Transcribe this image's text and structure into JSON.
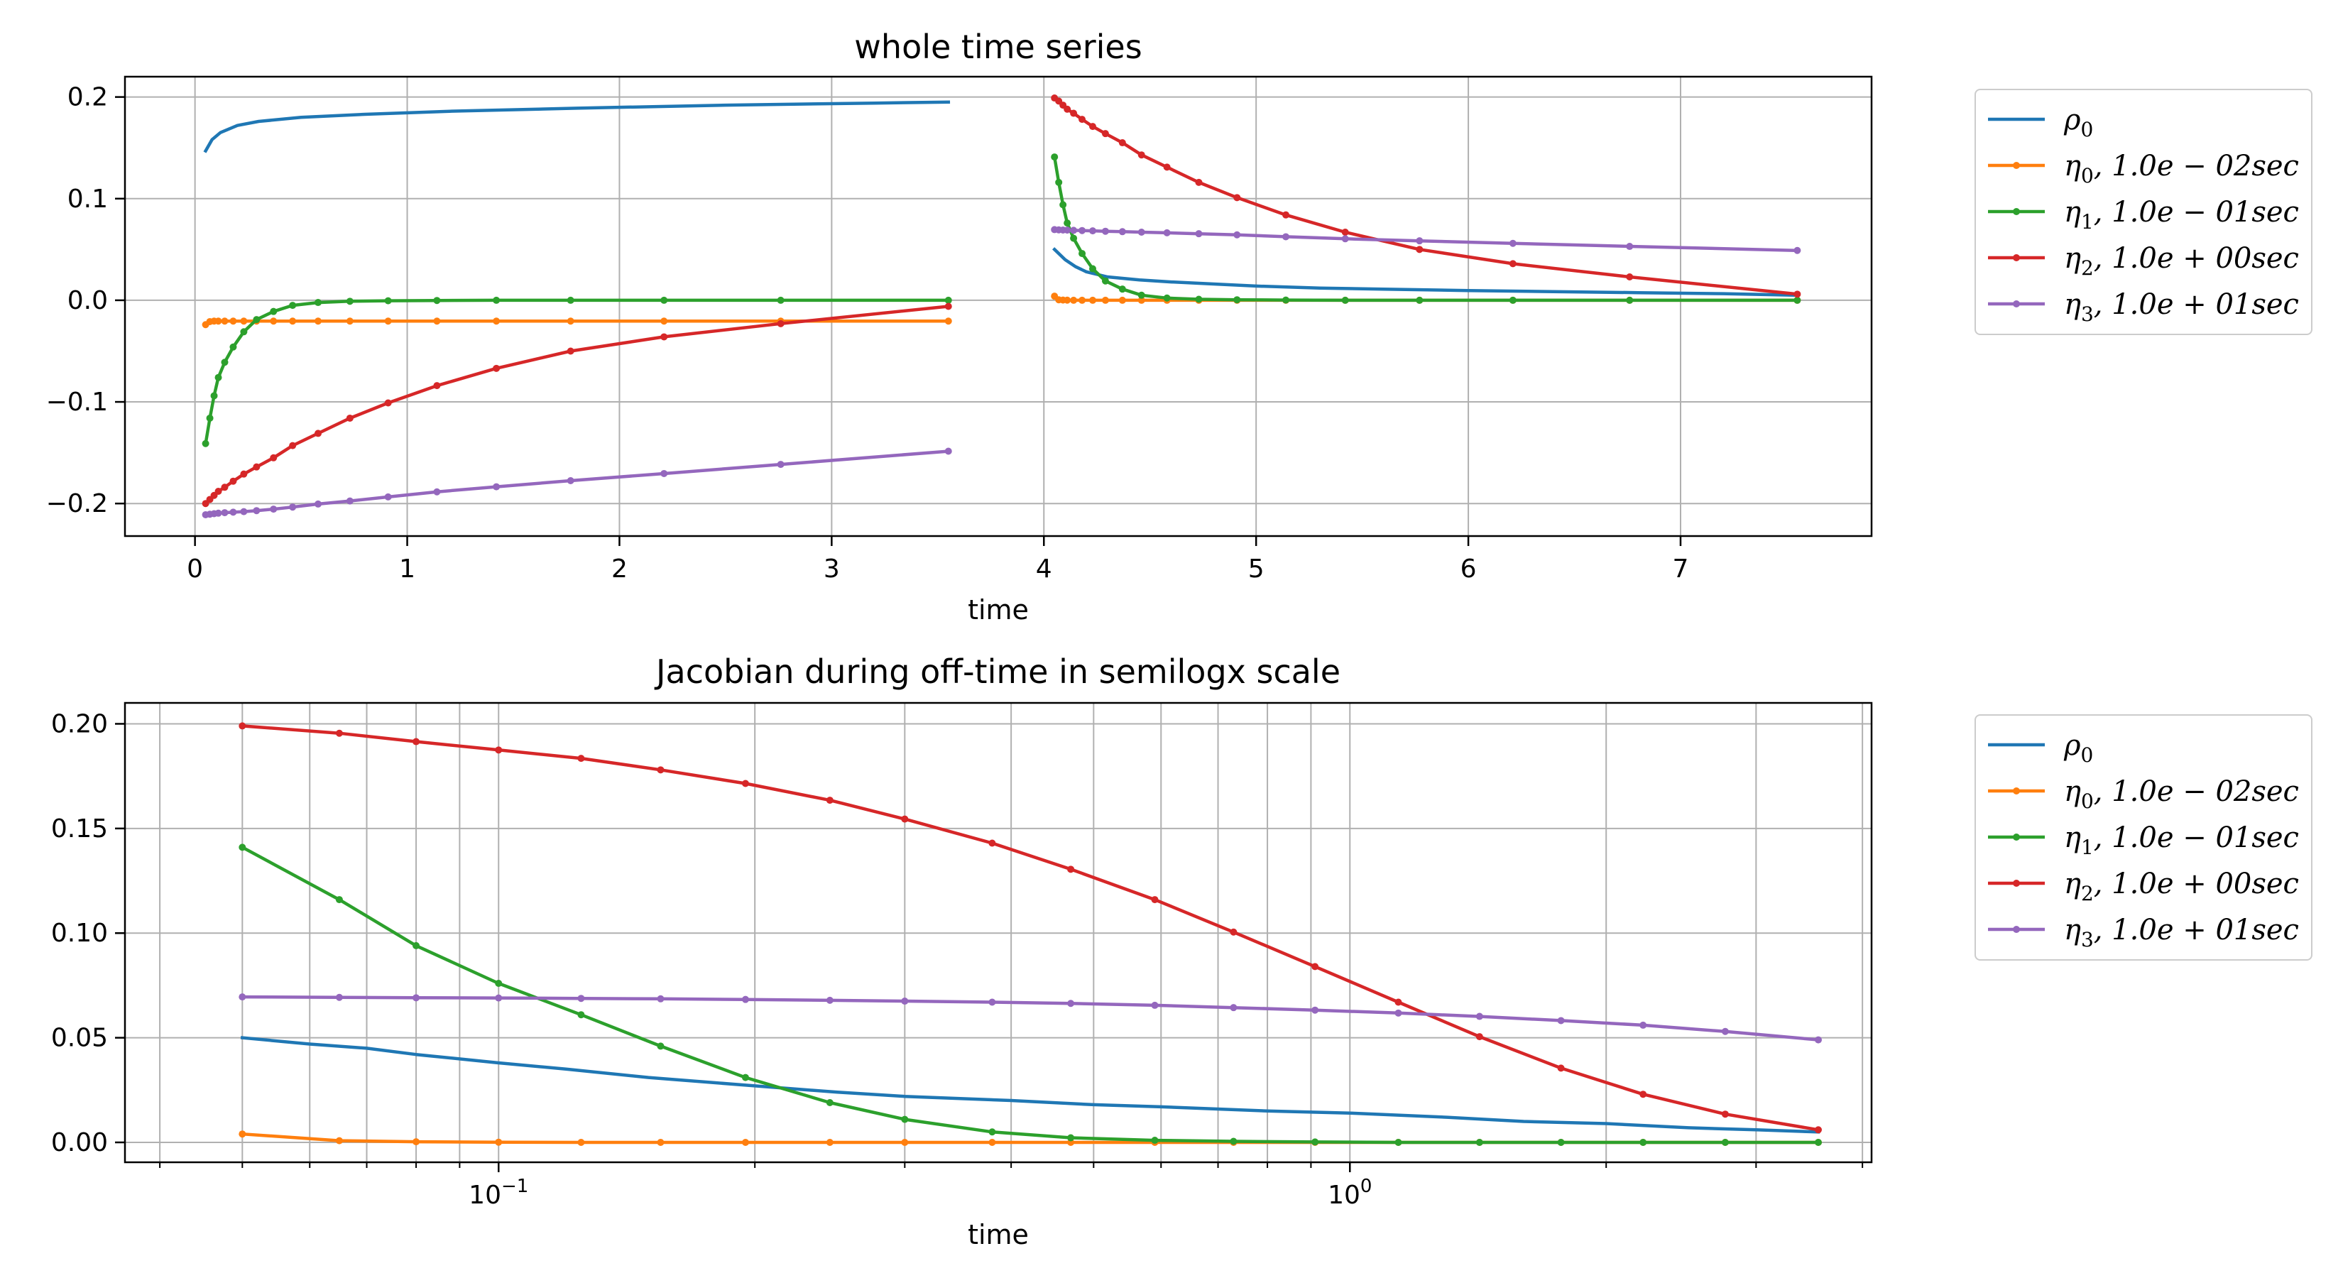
{
  "chart_data": [
    {
      "type": "line",
      "title": "whole time series",
      "xlabel": "time",
      "ylabel": "",
      "xscale": "linear",
      "xlim": [
        -0.33,
        7.9
      ],
      "ylim": [
        -0.232,
        0.22
      ],
      "xticks": [
        0,
        1,
        2,
        3,
        4,
        5,
        6,
        7
      ],
      "xtick_labels": [
        "0",
        "1",
        "2",
        "3",
        "4",
        "5",
        "6",
        "7"
      ],
      "yticks": [
        -0.2,
        -0.1,
        0.0,
        0.1,
        0.2
      ],
      "ytick_labels": [
        "−0.2",
        "−0.1",
        "0.0",
        "0.1",
        "0.2"
      ],
      "grid": true,
      "legend_position": "outside-right",
      "series": [
        {
          "name": "ρ₀",
          "name_base": "ρ",
          "name_sub": "0",
          "name_rest": "",
          "color": "#1f77b4",
          "markers": false,
          "segments": [
            {
              "x": [
                0.05,
                0.08,
                0.12,
                0.2,
                0.3,
                0.5,
                0.8,
                1.2,
                1.8,
                2.5,
                3.2,
                3.55
              ],
              "y": [
                0.147,
                0.158,
                0.165,
                0.172,
                0.176,
                0.18,
                0.183,
                0.186,
                0.189,
                0.192,
                0.194,
                0.195
              ]
            },
            {
              "x": [
                4.05,
                4.1,
                4.15,
                4.2,
                4.3,
                4.45,
                4.6,
                4.8,
                5.0,
                5.3,
                5.6,
                6.0,
                6.4,
                6.8,
                7.2,
                7.55
              ],
              "y": [
                0.05,
                0.04,
                0.033,
                0.028,
                0.023,
                0.02,
                0.018,
                0.016,
                0.014,
                0.012,
                0.011,
                0.0095,
                0.0085,
                0.0075,
                0.0065,
                0.005
              ]
            }
          ]
        },
        {
          "name": "η₀, 1.0e−02sec",
          "name_base": "η",
          "name_sub": "0",
          "name_rest": ", 1.0e − 02sec",
          "color": "#ff7f0e",
          "markers": true,
          "segments": [
            {
              "x": [
                0.05,
                0.07,
                0.09,
                0.11,
                0.14,
                0.18,
                0.23,
                0.29,
                0.37,
                0.46,
                0.58,
                0.73,
                0.91,
                1.14,
                1.42,
                1.77,
                2.21,
                2.76,
                3.55
              ],
              "y": [
                -0.024,
                -0.021,
                -0.0205,
                -0.0205,
                -0.0205,
                -0.0205,
                -0.0205,
                -0.0205,
                -0.0205,
                -0.0205,
                -0.0205,
                -0.0205,
                -0.0205,
                -0.0205,
                -0.0205,
                -0.0205,
                -0.0205,
                -0.0205,
                -0.0205
              ]
            },
            {
              "x": [
                4.05,
                4.07,
                4.09,
                4.11,
                4.14,
                4.18,
                4.23,
                4.29,
                4.37,
                4.46,
                4.58,
                4.73,
                4.91,
                5.14,
                5.42,
                5.77,
                6.21,
                6.76,
                7.55
              ],
              "y": [
                0.004,
                0.0005,
                0.0002,
                0.0001,
                0.0,
                0.0,
                0.0,
                0.0,
                0.0,
                0.0,
                0.0,
                0.0,
                0.0,
                0.0,
                0.0,
                0.0,
                0.0,
                0.0,
                0.0
              ]
            }
          ]
        },
        {
          "name": "η₁, 1.0e−01sec",
          "name_base": "η",
          "name_sub": "1",
          "name_rest": ", 1.0e − 01sec",
          "color": "#2ca02c",
          "markers": true,
          "segments": [
            {
              "x": [
                0.05,
                0.07,
                0.09,
                0.11,
                0.14,
                0.18,
                0.23,
                0.29,
                0.37,
                0.46,
                0.58,
                0.73,
                0.91,
                1.14,
                1.42,
                1.77,
                2.21,
                2.76,
                3.55
              ],
              "y": [
                -0.141,
                -0.116,
                -0.094,
                -0.076,
                -0.061,
                -0.046,
                -0.031,
                -0.019,
                -0.011,
                -0.005,
                -0.0022,
                -0.001,
                -0.0005,
                -0.0002,
                0.0,
                0.0,
                0.0,
                0.0,
                0.0
              ]
            },
            {
              "x": [
                4.05,
                4.07,
                4.09,
                4.11,
                4.14,
                4.18,
                4.23,
                4.29,
                4.37,
                4.46,
                4.58,
                4.73,
                4.91,
                5.14,
                5.42,
                5.77,
                6.21,
                6.76,
                7.55
              ],
              "y": [
                0.141,
                0.116,
                0.094,
                0.076,
                0.061,
                0.046,
                0.031,
                0.019,
                0.011,
                0.005,
                0.0022,
                0.001,
                0.0005,
                0.0002,
                0.0,
                0.0,
                0.0,
                0.0,
                0.0
              ]
            }
          ]
        },
        {
          "name": "η₂, 1.0e+00sec",
          "name_base": "η",
          "name_sub": "2",
          "name_rest": ", 1.0e + 00sec",
          "color": "#d62728",
          "markers": true,
          "segments": [
            {
              "x": [
                0.05,
                0.07,
                0.09,
                0.11,
                0.14,
                0.18,
                0.23,
                0.29,
                0.37,
                0.46,
                0.58,
                0.73,
                0.91,
                1.14,
                1.42,
                1.77,
                2.21,
                2.76,
                3.55
              ],
              "y": [
                -0.2,
                -0.196,
                -0.192,
                -0.188,
                -0.184,
                -0.178,
                -0.171,
                -0.164,
                -0.155,
                -0.143,
                -0.131,
                -0.116,
                -0.101,
                -0.084,
                -0.067,
                -0.05,
                -0.036,
                -0.023,
                -0.006
              ]
            },
            {
              "x": [
                4.05,
                4.07,
                4.09,
                4.11,
                4.14,
                4.18,
                4.23,
                4.29,
                4.37,
                4.46,
                4.58,
                4.73,
                4.91,
                5.14,
                5.42,
                5.77,
                6.21,
                6.76,
                7.55
              ],
              "y": [
                0.199,
                0.196,
                0.192,
                0.188,
                0.184,
                0.178,
                0.171,
                0.164,
                0.155,
                0.143,
                0.131,
                0.116,
                0.101,
                0.084,
                0.067,
                0.05,
                0.036,
                0.023,
                0.006
              ]
            }
          ]
        },
        {
          "name": "η₃, 1.0e+01sec",
          "name_base": "η",
          "name_sub": "3",
          "name_rest": ", 1.0e + 01sec",
          "color": "#9467bd",
          "markers": true,
          "segments": [
            {
              "x": [
                0.05,
                0.07,
                0.09,
                0.11,
                0.14,
                0.18,
                0.23,
                0.29,
                0.37,
                0.46,
                0.58,
                0.73,
                0.91,
                1.14,
                1.42,
                1.77,
                2.21,
                2.76,
                3.55
              ],
              "y": [
                -0.211,
                -0.2105,
                -0.21,
                -0.2095,
                -0.209,
                -0.2085,
                -0.208,
                -0.207,
                -0.2055,
                -0.2035,
                -0.2005,
                -0.1975,
                -0.1935,
                -0.1885,
                -0.1835,
                -0.1775,
                -0.1705,
                -0.1615,
                -0.1485
              ]
            },
            {
              "x": [
                4.05,
                4.07,
                4.09,
                4.11,
                4.14,
                4.18,
                4.23,
                4.29,
                4.37,
                4.46,
                4.58,
                4.73,
                4.91,
                5.14,
                5.42,
                5.77,
                6.21,
                6.76,
                7.55
              ],
              "y": [
                0.0695,
                0.0693,
                0.0691,
                0.069,
                0.0688,
                0.0686,
                0.0683,
                0.0679,
                0.0675,
                0.067,
                0.0664,
                0.0655,
                0.0644,
                0.0625,
                0.0605,
                0.0585,
                0.056,
                0.053,
                0.049
              ]
            }
          ]
        }
      ]
    },
    {
      "type": "line",
      "title": "Jacobian during off-time in semilogx scale",
      "xlabel": "time",
      "ylabel": "",
      "xscale": "log",
      "xlim": [
        0.0364,
        4.1
      ],
      "ylim": [
        -0.0095,
        0.21
      ],
      "xticks": [
        0.1,
        1.0
      ],
      "xtick_labels": [
        {
          "base": "10",
          "exp": "−1"
        },
        {
          "base": "10",
          "exp": "0"
        }
      ],
      "yticks": [
        0.0,
        0.05,
        0.1,
        0.15,
        0.2
      ],
      "ytick_labels": [
        "0.00",
        "0.05",
        "0.10",
        "0.15",
        "0.20"
      ],
      "grid": true,
      "legend_position": "outside-right",
      "series": [
        {
          "name": "ρ₀",
          "name_base": "ρ",
          "name_sub": "0",
          "name_rest": "",
          "color": "#1f77b4",
          "markers": false,
          "segments": [
            {
              "x": [
                0.05,
                0.06,
                0.07,
                0.08,
                0.1,
                0.12,
                0.15,
                0.2,
                0.25,
                0.3,
                0.4,
                0.5,
                0.6,
                0.8,
                1.0,
                1.3,
                1.6,
                2.0,
                2.5,
                3.0,
                3.55
              ],
              "y": [
                0.05,
                0.047,
                0.045,
                0.042,
                0.038,
                0.035,
                0.031,
                0.027,
                0.024,
                0.022,
                0.02,
                0.018,
                0.017,
                0.015,
                0.014,
                0.012,
                0.01,
                0.009,
                0.007,
                0.006,
                0.005
              ]
            }
          ]
        },
        {
          "name": "η₀, 1.0e−02sec",
          "name_base": "η",
          "name_sub": "0",
          "name_rest": ", 1.0e − 02sec",
          "color": "#ff7f0e",
          "markers": true,
          "segments": [
            {
              "x": [
                0.05,
                0.065,
                0.08,
                0.1,
                0.125,
                0.155,
                0.195,
                0.245,
                0.3,
                0.38,
                0.47,
                0.59,
                0.73,
                0.91,
                1.14,
                1.42,
                1.77,
                2.21,
                2.76,
                3.55
              ],
              "y": [
                0.004,
                0.0008,
                0.0003,
                0.0001,
                0.0,
                0.0,
                0.0,
                0.0,
                0.0,
                0.0,
                0.0,
                0.0,
                0.0,
                0.0,
                0.0,
                0.0,
                0.0,
                0.0,
                0.0,
                0.0
              ]
            }
          ]
        },
        {
          "name": "η₁, 1.0e−01sec",
          "name_base": "η",
          "name_sub": "1",
          "name_rest": ", 1.0e − 01sec",
          "color": "#2ca02c",
          "markers": true,
          "segments": [
            {
              "x": [
                0.05,
                0.065,
                0.08,
                0.1,
                0.125,
                0.155,
                0.195,
                0.245,
                0.3,
                0.38,
                0.47,
                0.59,
                0.73,
                0.91,
                1.14,
                1.42,
                1.77,
                2.21,
                2.76,
                3.55
              ],
              "y": [
                0.141,
                0.116,
                0.094,
                0.076,
                0.061,
                0.046,
                0.031,
                0.019,
                0.011,
                0.005,
                0.0022,
                0.001,
                0.0005,
                0.0002,
                0.0,
                0.0,
                0.0,
                0.0,
                0.0,
                0.0
              ]
            }
          ]
        },
        {
          "name": "η₂, 1.0e+00sec",
          "name_base": "η",
          "name_sub": "2",
          "name_rest": ", 1.0e + 00sec",
          "color": "#d62728",
          "markers": true,
          "segments": [
            {
              "x": [
                0.05,
                0.065,
                0.08,
                0.1,
                0.125,
                0.155,
                0.195,
                0.245,
                0.3,
                0.38,
                0.47,
                0.59,
                0.73,
                0.91,
                1.14,
                1.42,
                1.77,
                2.21,
                2.76,
                3.55
              ],
              "y": [
                0.199,
                0.1955,
                0.1915,
                0.1875,
                0.1835,
                0.178,
                0.1715,
                0.1635,
                0.1545,
                0.143,
                0.1305,
                0.116,
                0.1005,
                0.084,
                0.067,
                0.0505,
                0.0355,
                0.023,
                0.0135,
                0.006
              ]
            }
          ]
        },
        {
          "name": "η₃, 1.0e+01sec",
          "name_base": "η",
          "name_sub": "3",
          "name_rest": ", 1.0e + 01sec",
          "color": "#9467bd",
          "markers": true,
          "segments": [
            {
              "x": [
                0.05,
                0.065,
                0.08,
                0.1,
                0.125,
                0.155,
                0.195,
                0.245,
                0.3,
                0.38,
                0.47,
                0.59,
                0.73,
                0.91,
                1.14,
                1.42,
                1.77,
                2.21,
                2.76,
                3.55
              ],
              "y": [
                0.0695,
                0.0693,
                0.0691,
                0.069,
                0.0688,
                0.0686,
                0.0683,
                0.0679,
                0.0675,
                0.067,
                0.0664,
                0.0655,
                0.0644,
                0.0632,
                0.0618,
                0.0602,
                0.0582,
                0.056,
                0.053,
                0.049
              ]
            }
          ]
        }
      ]
    }
  ]
}
